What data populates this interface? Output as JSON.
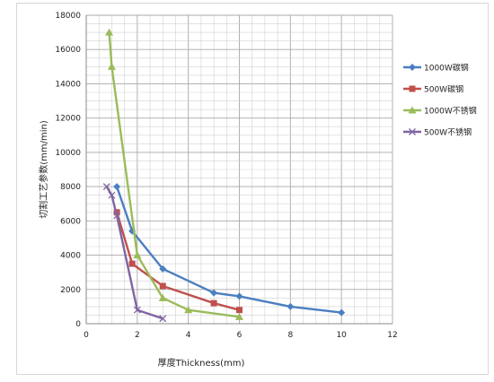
{
  "chart_data": {
    "type": "line",
    "xlabel": "厚度Thickness(mm)",
    "ylabel": "切割工艺参数(mm/min)",
    "xlim": [
      0,
      12
    ],
    "ylim": [
      0,
      18000
    ],
    "x_ticks": [
      "0",
      "2",
      "4",
      "6",
      "8",
      "10",
      "12"
    ],
    "y_ticks": [
      "0",
      "2000",
      "4000",
      "6000",
      "8000",
      "10000",
      "12000",
      "14000",
      "16000",
      "18000"
    ],
    "grid": true,
    "legend_position": "right",
    "series": [
      {
        "name": "1000W碳钢",
        "color": "#4a7fc1",
        "marker": "diamond",
        "points": [
          [
            1.2,
            8000
          ],
          [
            1.8,
            5400
          ],
          [
            3,
            3200
          ],
          [
            5,
            1800
          ],
          [
            6,
            1600
          ],
          [
            8,
            1000
          ],
          [
            10,
            650
          ]
        ]
      },
      {
        "name": "500W碳钢",
        "color": "#c0504d",
        "marker": "square",
        "points": [
          [
            1.2,
            6500
          ],
          [
            1.8,
            3500
          ],
          [
            3,
            2200
          ],
          [
            5,
            1200
          ],
          [
            6,
            800
          ]
        ]
      },
      {
        "name": "1000W不锈钢",
        "color": "#9bbb59",
        "marker": "triangle",
        "points": [
          [
            0.9,
            17000
          ],
          [
            1,
            15000
          ],
          [
            2,
            4000
          ],
          [
            3,
            1500
          ],
          [
            4,
            800
          ],
          [
            6,
            400
          ]
        ]
      },
      {
        "name": "500W不锈钢",
        "color": "#8064a2",
        "marker": "x",
        "points": [
          [
            0.8,
            8000
          ],
          [
            1,
            7500
          ],
          [
            1.2,
            6300
          ],
          [
            2,
            800
          ],
          [
            3,
            300
          ]
        ]
      }
    ]
  }
}
